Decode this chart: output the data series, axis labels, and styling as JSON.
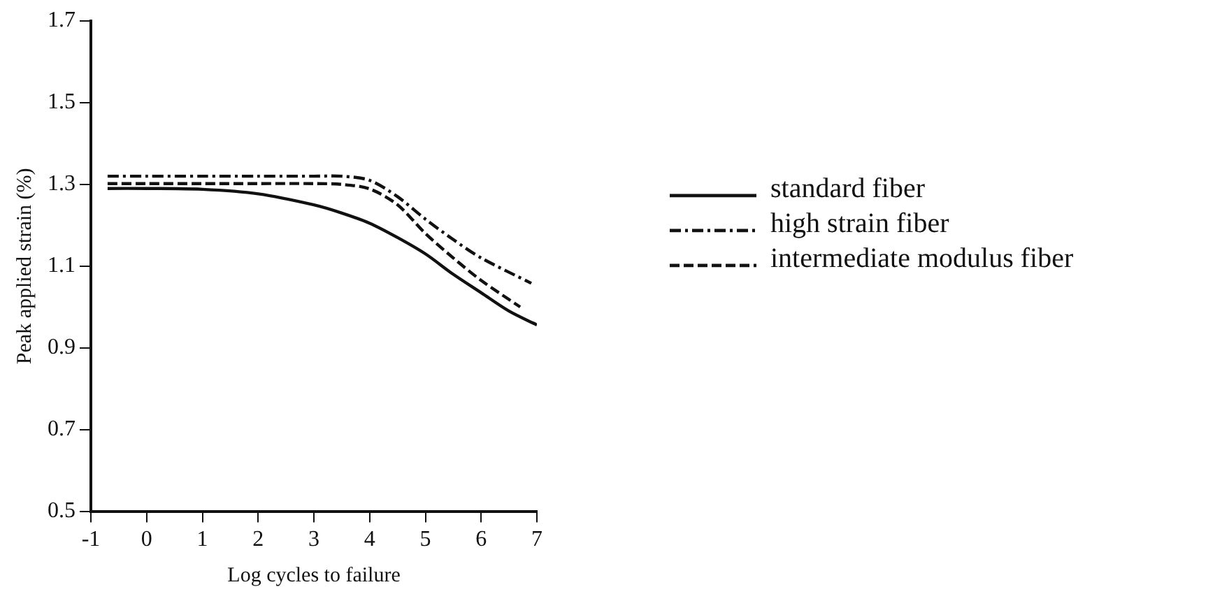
{
  "chart_data": {
    "type": "line",
    "xlabel": "Log cycles to failure",
    "ylabel": "Peak applied strain (%)",
    "xlim": [
      -1,
      7
    ],
    "xticks": [
      -1,
      0,
      1,
      2,
      3,
      4,
      5,
      6,
      7
    ],
    "ylim": [
      0.5,
      1.7
    ],
    "yticks": [
      0.5,
      0.7,
      0.9,
      1.1,
      1.3,
      1.5,
      1.7
    ],
    "grid": false,
    "legend": "right",
    "marker": "none",
    "series": [
      {
        "name": "standard fiber",
        "color": "#111111",
        "line_style": "solid",
        "x": [
          -0.7,
          0,
          1,
          2,
          3,
          3.5,
          4,
          4.5,
          5,
          5.5,
          6,
          6.5,
          7
        ],
        "values": [
          1.29,
          1.29,
          1.288,
          1.277,
          1.25,
          1.23,
          1.205,
          1.17,
          1.13,
          1.08,
          1.035,
          0.99,
          0.956
        ]
      },
      {
        "name": "high strain fiber",
        "color": "#111111",
        "line_style": "dashdot",
        "x": [
          -0.7,
          0,
          1,
          2,
          3,
          3.5,
          4,
          4.5,
          5,
          5.5,
          6,
          6.9
        ],
        "values": [
          1.32,
          1.32,
          1.32,
          1.32,
          1.32,
          1.32,
          1.31,
          1.27,
          1.215,
          1.165,
          1.12,
          1.058
        ]
      },
      {
        "name": "intermediate modulus fiber",
        "color": "#111111",
        "line_style": "dashed",
        "x": [
          -0.7,
          0,
          1,
          2,
          3,
          3.5,
          4,
          4.5,
          5,
          5.5,
          6,
          6.7
        ],
        "values": [
          1.302,
          1.302,
          1.302,
          1.302,
          1.302,
          1.3,
          1.289,
          1.25,
          1.18,
          1.12,
          1.065,
          1.0
        ]
      }
    ]
  }
}
